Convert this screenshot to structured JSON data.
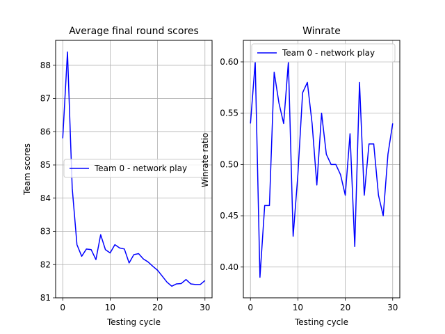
{
  "chart_data": [
    {
      "type": "line",
      "title": "Average final round scores",
      "xlabel": "Testing cycle",
      "ylabel": "Team scores",
      "xlim": [
        -1.5,
        31.5
      ],
      "ylim": [
        81,
        88.75
      ],
      "xticks": [
        0,
        10,
        20,
        30
      ],
      "yticks": [
        81,
        82,
        83,
        84,
        85,
        86,
        87,
        88
      ],
      "grid": true,
      "legend_position": "center-right",
      "series": [
        {
          "name": "Team 0 - network play",
          "color": "#0000ff",
          "x": [
            0,
            1,
            2,
            3,
            4,
            5,
            6,
            7,
            8,
            9,
            10,
            11,
            12,
            13,
            14,
            15,
            16,
            17,
            18,
            19,
            20,
            21,
            22,
            23,
            24,
            25,
            26,
            27,
            28,
            29,
            30
          ],
          "values": [
            85.8,
            88.4,
            84.3,
            82.6,
            82.25,
            82.47,
            82.45,
            82.15,
            82.9,
            82.45,
            82.35,
            82.6,
            82.5,
            82.47,
            82.05,
            82.3,
            82.33,
            82.17,
            82.08,
            81.95,
            81.83,
            81.65,
            81.47,
            81.35,
            81.42,
            81.43,
            81.55,
            81.42,
            81.4,
            81.4,
            81.52
          ]
        }
      ]
    },
    {
      "type": "line",
      "title": "Winrate",
      "xlabel": "Testing cycle",
      "ylabel": "Winrate ratio",
      "xlim": [
        -1.5,
        31.5
      ],
      "ylim": [
        0.37,
        0.621
      ],
      "xticks": [
        0,
        10,
        20,
        30
      ],
      "yticks": [
        0.4,
        0.45,
        0.5,
        0.55,
        0.6
      ],
      "ytick_labels": [
        "0.40",
        "0.45",
        "0.50",
        "0.55",
        "0.60"
      ],
      "grid": true,
      "legend_position": "top-left",
      "series": [
        {
          "name": "Team 0 - network play",
          "color": "#0000ff",
          "x": [
            0,
            1,
            2,
            3,
            4,
            5,
            6,
            7,
            8,
            9,
            10,
            11,
            12,
            13,
            14,
            15,
            16,
            17,
            18,
            19,
            20,
            21,
            22,
            23,
            24,
            25,
            26,
            27,
            28,
            29,
            30
          ],
          "values": [
            0.54,
            0.6,
            0.39,
            0.46,
            0.46,
            0.59,
            0.56,
            0.54,
            0.6,
            0.43,
            0.49,
            0.57,
            0.58,
            0.54,
            0.48,
            0.55,
            0.51,
            0.5,
            0.5,
            0.49,
            0.47,
            0.53,
            0.42,
            0.58,
            0.47,
            0.52,
            0.52,
            0.47,
            0.45,
            0.51,
            0.54
          ]
        }
      ]
    }
  ]
}
